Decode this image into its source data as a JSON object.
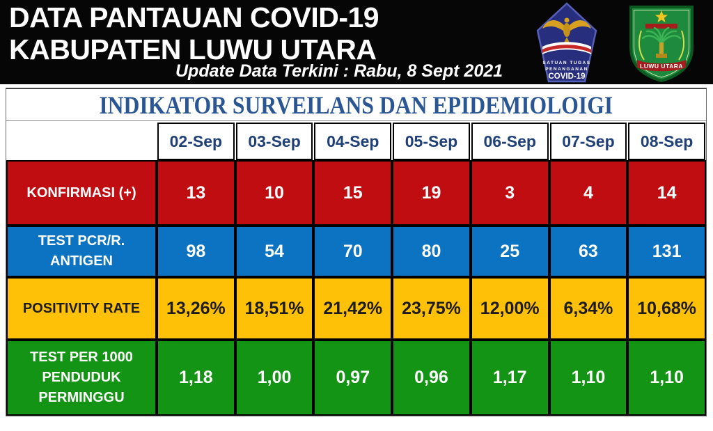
{
  "header": {
    "title_line1": "DATA PANTAUAN COVID-19",
    "title_line2": "KABUPATEN LUWU UTARA",
    "update_line": "Update Data Terkini : Rabu, 8 Sept 2021"
  },
  "logos": {
    "satgas": {
      "line1": "SATUAN TUGAS",
      "line2": "PENANGANAN",
      "line3": "COVID-19"
    },
    "luwu_utara": {
      "label": "LUWU UTARA"
    }
  },
  "table": {
    "title": "INDIKATOR SURVEILANS DAN EPIDEMIOLOIGI",
    "dates": [
      "02-Sep",
      "03-Sep",
      "04-Sep",
      "05-Sep",
      "06-Sep",
      "07-Sep",
      "08-Sep"
    ],
    "rows": [
      {
        "label_lines": [
          "KONFIRMASI (+)"
        ],
        "values": [
          "13",
          "10",
          "15",
          "19",
          "3",
          "4",
          "14"
        ],
        "color": "#c00d12",
        "text_color": "#ffffff"
      },
      {
        "label_lines": [
          "TEST PCR/R.",
          "ANTIGEN"
        ],
        "values": [
          "98",
          "54",
          "70",
          "80",
          "25",
          "63",
          "131"
        ],
        "color": "#0c73c2",
        "text_color": "#ffffff"
      },
      {
        "label_lines": [
          "POSITIVITY RATE"
        ],
        "values": [
          "13,26%",
          "18,51%",
          "21,42%",
          "23,75%",
          "12,00%",
          "6,34%",
          "10,68%"
        ],
        "color": "#ffc008",
        "text_color": "#1c1c1c"
      },
      {
        "label_lines": [
          "TEST PER 1000",
          "PENDUDUK",
          "PERMINGGU"
        ],
        "values": [
          "1,18",
          "1,00",
          "0,97",
          "0,96",
          "1,17",
          "1,10",
          "1,10"
        ],
        "color": "#149414",
        "text_color": "#ffffff"
      }
    ]
  },
  "colors": {
    "header_bg": "#060606",
    "confirmed_red": "#c00d12",
    "test_blue": "#0c73c2",
    "positivity_yellow": "#ffc008",
    "per1000_green": "#149414",
    "navy_text": "#1e3f77",
    "table_title_navy": "#2a5694"
  },
  "chart_data": {
    "type": "table",
    "title": "INDIKATOR SURVEILANS DAN EPIDEMIOLOIGI",
    "categories": [
      "02-Sep",
      "03-Sep",
      "04-Sep",
      "05-Sep",
      "06-Sep",
      "07-Sep",
      "08-Sep"
    ],
    "series": [
      {
        "name": "KONFIRMASI (+)",
        "values": [
          13,
          10,
          15,
          19,
          3,
          4,
          14
        ]
      },
      {
        "name": "TEST PCR/R. ANTIGEN",
        "values": [
          98,
          54,
          70,
          80,
          25,
          63,
          131
        ]
      },
      {
        "name": "POSITIVITY RATE (%)",
        "values": [
          13.26,
          18.51,
          21.42,
          23.75,
          12.0,
          6.34,
          10.68
        ]
      },
      {
        "name": "TEST PER 1000 PENDUDUK PERMINGGU",
        "values": [
          1.18,
          1.0,
          0.97,
          0.96,
          1.17,
          1.1,
          1.1
        ]
      }
    ],
    "legend_position": "left-row-labels",
    "grid": true
  }
}
